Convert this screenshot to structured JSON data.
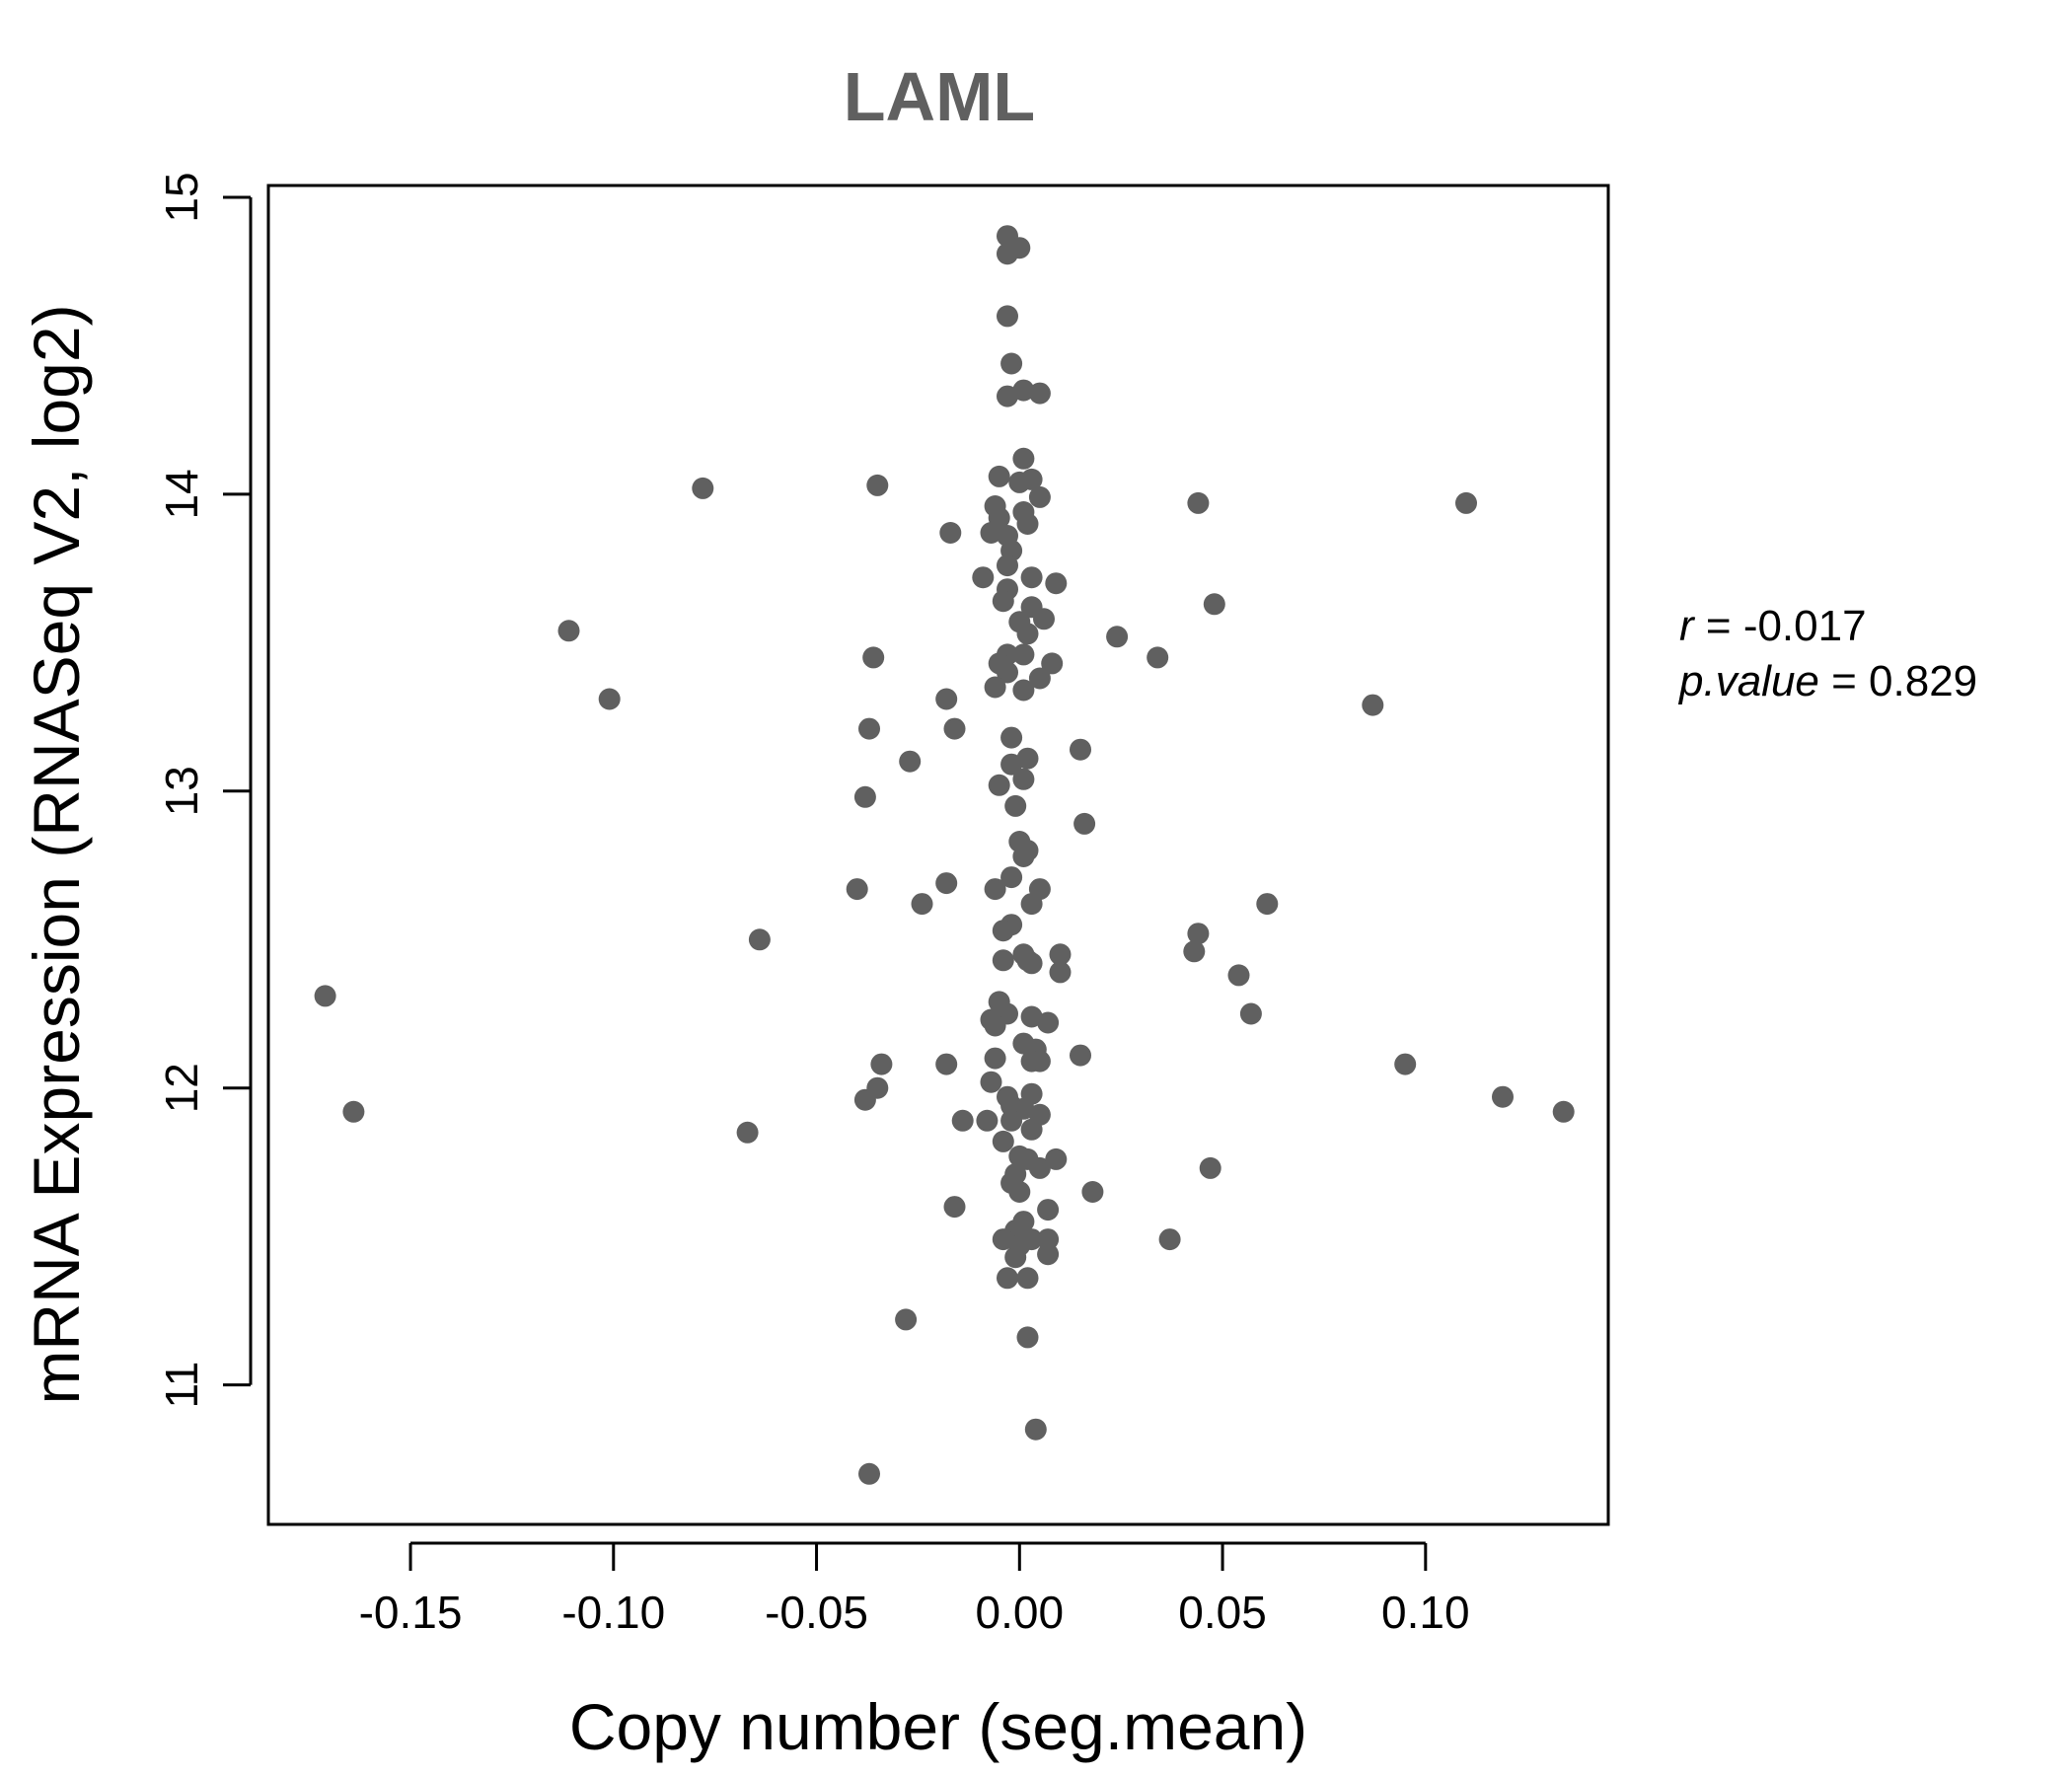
{
  "chart_data": {
    "type": "scatter",
    "title": "LAML",
    "xlabel": "Copy number (seg.mean)",
    "ylabel": "mRNA Expression (RNASeq V2, log2)",
    "xlim": [
      -0.185,
      0.145
    ],
    "ylim": [
      10.53,
      15.04
    ],
    "xticks": [
      -0.15,
      -0.1,
      -0.05,
      0.0,
      0.05,
      0.1
    ],
    "xtick_labels": [
      "-0.15",
      "-0.10",
      "-0.05",
      "0.00",
      "0.05",
      "0.10"
    ],
    "yticks": [
      11,
      12,
      13,
      14,
      15
    ],
    "ytick_labels": [
      "11",
      "12",
      "13",
      "14",
      "15"
    ],
    "grid": false,
    "colors": {
      "points": "#606060",
      "axis": "#000000",
      "title": "#606060"
    },
    "stats": {
      "r_label": "r",
      "r_value": "-0.017",
      "p_label": "p.value",
      "p_value": "0.829"
    },
    "points": [
      {
        "x": -0.003,
        "y": 14.87
      },
      {
        "x": 0.0,
        "y": 14.83
      },
      {
        "x": -0.003,
        "y": 14.81
      },
      {
        "x": -0.003,
        "y": 14.6
      },
      {
        "x": -0.002,
        "y": 14.44
      },
      {
        "x": 0.001,
        "y": 14.35
      },
      {
        "x": 0.005,
        "y": 14.34
      },
      {
        "x": -0.003,
        "y": 14.33
      },
      {
        "x": 0.001,
        "y": 14.12
      },
      {
        "x": -0.005,
        "y": 14.06
      },
      {
        "x": 0.0,
        "y": 14.04
      },
      {
        "x": 0.003,
        "y": 14.05
      },
      {
        "x": 0.005,
        "y": 13.99
      },
      {
        "x": -0.006,
        "y": 13.96
      },
      {
        "x": 0.001,
        "y": 13.94
      },
      {
        "x": -0.005,
        "y": 13.92
      },
      {
        "x": 0.002,
        "y": 13.9
      },
      {
        "x": -0.007,
        "y": 13.87
      },
      {
        "x": -0.003,
        "y": 13.86
      },
      {
        "x": -0.002,
        "y": 13.81
      },
      {
        "x": -0.003,
        "y": 13.76
      },
      {
        "x": 0.003,
        "y": 13.72
      },
      {
        "x": -0.009,
        "y": 13.72
      },
      {
        "x": 0.009,
        "y": 13.7
      },
      {
        "x": -0.003,
        "y": 13.68
      },
      {
        "x": -0.004,
        "y": 13.64
      },
      {
        "x": 0.003,
        "y": 13.62
      },
      {
        "x": 0.006,
        "y": 13.58
      },
      {
        "x": 0.0,
        "y": 13.57
      },
      {
        "x": 0.002,
        "y": 13.53
      },
      {
        "x": -0.003,
        "y": 13.46
      },
      {
        "x": 0.001,
        "y": 13.46
      },
      {
        "x": -0.005,
        "y": 13.43
      },
      {
        "x": 0.008,
        "y": 13.43
      },
      {
        "x": -0.003,
        "y": 13.4
      },
      {
        "x": 0.005,
        "y": 13.38
      },
      {
        "x": -0.006,
        "y": 13.35
      },
      {
        "x": 0.001,
        "y": 13.34
      },
      {
        "x": -0.002,
        "y": 13.18
      },
      {
        "x": 0.002,
        "y": 13.11
      },
      {
        "x": -0.002,
        "y": 13.09
      },
      {
        "x": 0.001,
        "y": 13.04
      },
      {
        "x": -0.005,
        "y": 13.02
      },
      {
        "x": -0.001,
        "y": 12.95
      },
      {
        "x": 0.0,
        "y": 12.83
      },
      {
        "x": 0.002,
        "y": 12.8
      },
      {
        "x": 0.001,
        "y": 12.78
      },
      {
        "x": -0.002,
        "y": 12.71
      },
      {
        "x": -0.006,
        "y": 12.67
      },
      {
        "x": 0.005,
        "y": 12.67
      },
      {
        "x": 0.003,
        "y": 12.62
      },
      {
        "x": -0.002,
        "y": 12.55
      },
      {
        "x": -0.004,
        "y": 12.53
      },
      {
        "x": 0.001,
        "y": 12.45
      },
      {
        "x": 0.01,
        "y": 12.45
      },
      {
        "x": -0.004,
        "y": 12.43
      },
      {
        "x": 0.002,
        "y": 12.43
      },
      {
        "x": 0.003,
        "y": 12.42
      },
      {
        "x": 0.01,
        "y": 12.39
      },
      {
        "x": -0.005,
        "y": 12.29
      },
      {
        "x": -0.003,
        "y": 12.25
      },
      {
        "x": 0.003,
        "y": 12.24
      },
      {
        "x": -0.007,
        "y": 12.23
      },
      {
        "x": 0.007,
        "y": 12.22
      },
      {
        "x": -0.006,
        "y": 12.21
      },
      {
        "x": 0.001,
        "y": 12.15
      },
      {
        "x": 0.004,
        "y": 12.13
      },
      {
        "x": -0.006,
        "y": 12.1
      },
      {
        "x": 0.003,
        "y": 12.09
      },
      {
        "x": 0.005,
        "y": 12.09
      },
      {
        "x": -0.007,
        "y": 12.02
      },
      {
        "x": 0.003,
        "y": 11.98
      },
      {
        "x": -0.003,
        "y": 11.97
      },
      {
        "x": -0.002,
        "y": 11.94
      },
      {
        "x": 0.001,
        "y": 11.93
      },
      {
        "x": 0.005,
        "y": 11.91
      },
      {
        "x": -0.002,
        "y": 11.89
      },
      {
        "x": -0.008,
        "y": 11.89
      },
      {
        "x": 0.003,
        "y": 11.86
      },
      {
        "x": -0.004,
        "y": 11.82
      },
      {
        "x": 0.0,
        "y": 11.77
      },
      {
        "x": 0.002,
        "y": 11.76
      },
      {
        "x": 0.009,
        "y": 11.76
      },
      {
        "x": 0.005,
        "y": 11.73
      },
      {
        "x": -0.001,
        "y": 11.71
      },
      {
        "x": -0.002,
        "y": 11.68
      },
      {
        "x": 0.0,
        "y": 11.65
      },
      {
        "x": 0.007,
        "y": 11.59
      },
      {
        "x": 0.001,
        "y": 11.55
      },
      {
        "x": -0.001,
        "y": 11.52
      },
      {
        "x": -0.004,
        "y": 11.49
      },
      {
        "x": 0.003,
        "y": 11.49
      },
      {
        "x": 0.007,
        "y": 11.49
      },
      {
        "x": 0.0,
        "y": 11.47
      },
      {
        "x": -0.001,
        "y": 11.43
      },
      {
        "x": 0.007,
        "y": 11.44
      },
      {
        "x": -0.003,
        "y": 11.36
      },
      {
        "x": 0.002,
        "y": 11.36
      },
      {
        "x": 0.002,
        "y": 11.16
      },
      {
        "x": 0.004,
        "y": 10.85
      },
      {
        "x": -0.078,
        "y": 14.02
      },
      {
        "x": -0.035,
        "y": 14.03
      },
      {
        "x": -0.017,
        "y": 13.87
      },
      {
        "x": -0.111,
        "y": 13.54
      },
      {
        "x": -0.101,
        "y": 13.31
      },
      {
        "x": -0.036,
        "y": 13.45
      },
      {
        "x": -0.018,
        "y": 13.31
      },
      {
        "x": -0.016,
        "y": 13.21
      },
      {
        "x": -0.037,
        "y": 13.21
      },
      {
        "x": -0.027,
        "y": 13.1
      },
      {
        "x": -0.038,
        "y": 12.98
      },
      {
        "x": -0.04,
        "y": 12.67
      },
      {
        "x": -0.018,
        "y": 12.69
      },
      {
        "x": -0.024,
        "y": 12.62
      },
      {
        "x": -0.064,
        "y": 12.5
      },
      {
        "x": -0.171,
        "y": 12.31
      },
      {
        "x": -0.164,
        "y": 11.92
      },
      {
        "x": -0.034,
        "y": 12.08
      },
      {
        "x": -0.018,
        "y": 12.08
      },
      {
        "x": -0.035,
        "y": 12.0
      },
      {
        "x": -0.038,
        "y": 11.96
      },
      {
        "x": -0.014,
        "y": 11.89
      },
      {
        "x": -0.067,
        "y": 11.85
      },
      {
        "x": -0.016,
        "y": 11.6
      },
      {
        "x": -0.028,
        "y": 11.22
      },
      {
        "x": -0.037,
        "y": 10.7
      },
      {
        "x": 0.044,
        "y": 13.97
      },
      {
        "x": 0.11,
        "y": 13.97
      },
      {
        "x": 0.048,
        "y": 13.63
      },
      {
        "x": 0.024,
        "y": 13.52
      },
      {
        "x": 0.034,
        "y": 13.45
      },
      {
        "x": 0.087,
        "y": 13.29
      },
      {
        "x": 0.015,
        "y": 13.14
      },
      {
        "x": 0.016,
        "y": 12.89
      },
      {
        "x": 0.061,
        "y": 12.62
      },
      {
        "x": 0.044,
        "y": 12.52
      },
      {
        "x": 0.043,
        "y": 12.46
      },
      {
        "x": 0.054,
        "y": 12.38
      },
      {
        "x": 0.057,
        "y": 12.25
      },
      {
        "x": 0.015,
        "y": 12.11
      },
      {
        "x": 0.095,
        "y": 12.08
      },
      {
        "x": 0.119,
        "y": 11.97
      },
      {
        "x": 0.134,
        "y": 11.92
      },
      {
        "x": 0.047,
        "y": 11.73
      },
      {
        "x": 0.018,
        "y": 11.65
      },
      {
        "x": 0.037,
        "y": 11.49
      }
    ]
  }
}
